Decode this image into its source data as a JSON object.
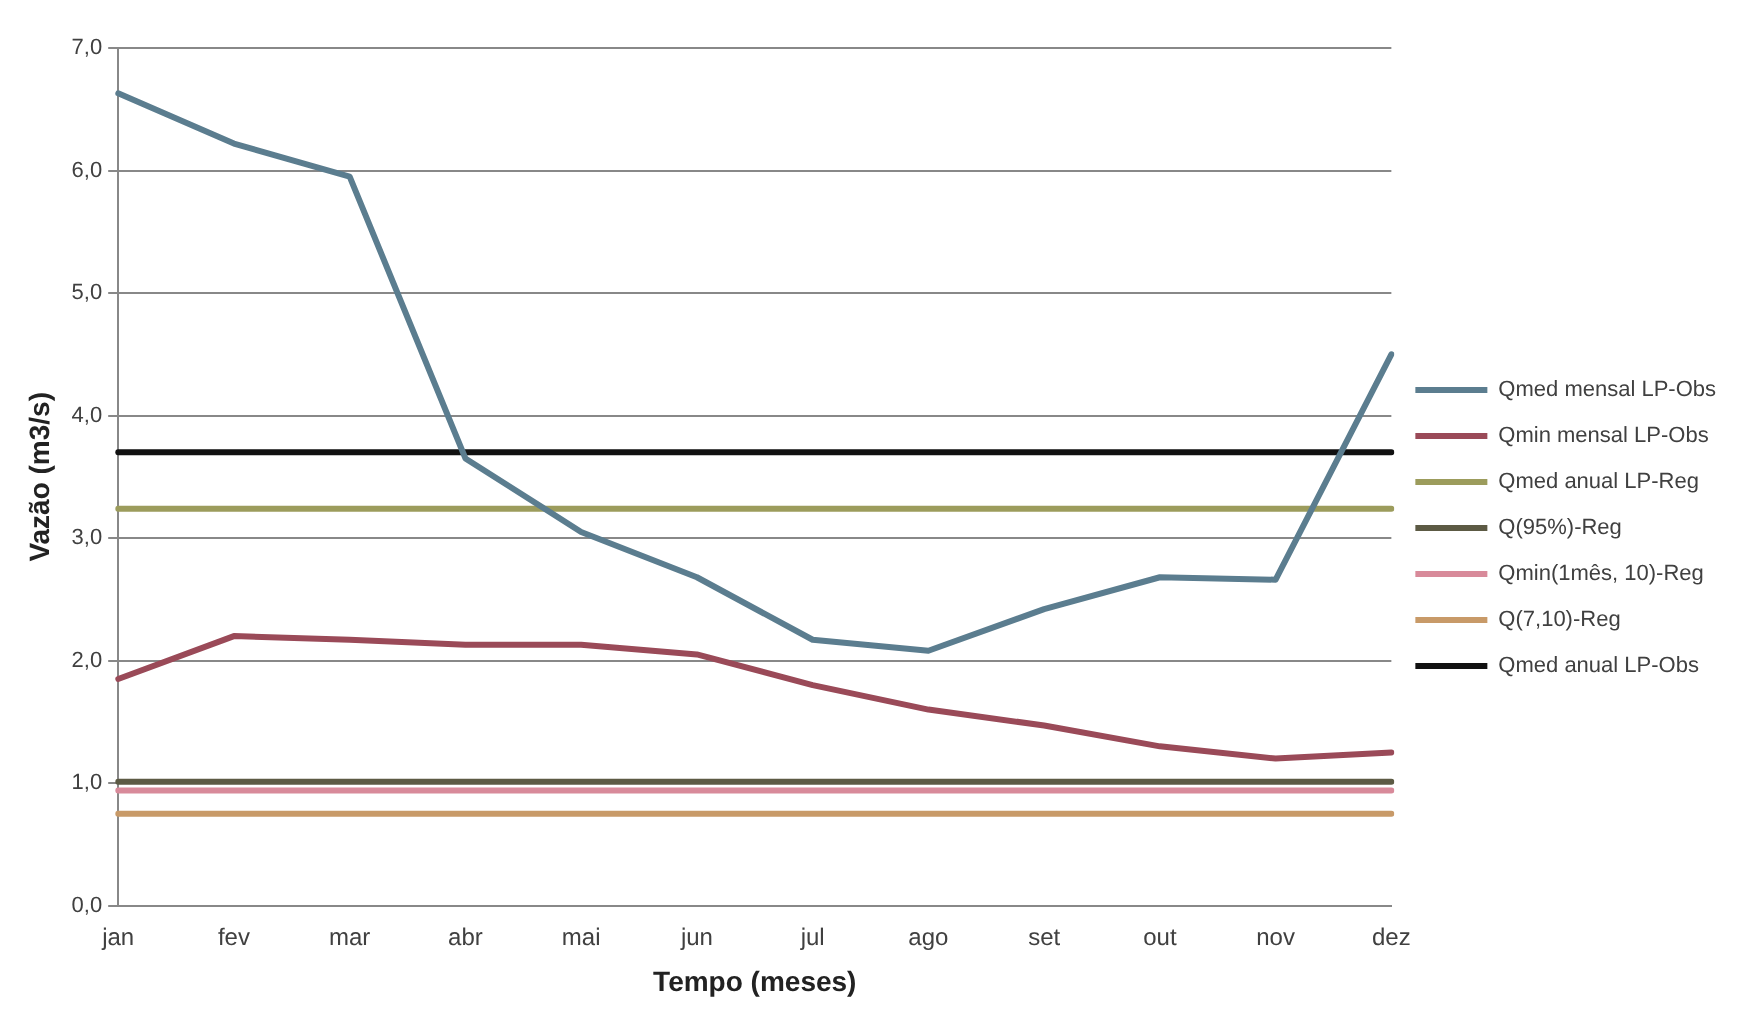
{
  "chart_data": {
    "type": "line",
    "xlabel": "Tempo (meses)",
    "ylabel": "Vazão (m3/s)",
    "categories": [
      "jan",
      "fev",
      "mar",
      "abr",
      "mai",
      "jun",
      "jul",
      "ago",
      "set",
      "out",
      "nov",
      "dez"
    ],
    "series": [
      {
        "name": "Qmed mensal LP-Obs",
        "color": "#5b7d8f",
        "values": [
          6.63,
          6.22,
          5.95,
          3.65,
          3.05,
          2.68,
          2.17,
          2.08,
          2.42,
          2.68,
          2.66,
          4.5
        ]
      },
      {
        "name": "Qmin mensal LP-Obs",
        "color": "#9a4a58",
        "values": [
          1.85,
          2.2,
          2.17,
          2.13,
          2.13,
          2.05,
          1.8,
          1.6,
          1.47,
          1.3,
          1.2,
          1.25
        ]
      },
      {
        "name": "Qmed anual LP-Reg",
        "color": "#9c9c5c",
        "values": [
          3.24,
          3.24,
          3.24,
          3.24,
          3.24,
          3.24,
          3.24,
          3.24,
          3.24,
          3.24,
          3.24,
          3.24
        ]
      },
      {
        "name": "Q(95%)-Reg",
        "color": "#5c5a44",
        "values": [
          1.01,
          1.01,
          1.01,
          1.01,
          1.01,
          1.01,
          1.01,
          1.01,
          1.01,
          1.01,
          1.01,
          1.01
        ]
      },
      {
        "name": "Qmin(1mês, 10)-Reg",
        "color": "#d88a9a",
        "values": [
          0.94,
          0.94,
          0.94,
          0.94,
          0.94,
          0.94,
          0.94,
          0.94,
          0.94,
          0.94,
          0.94,
          0.94
        ]
      },
      {
        "name": "Q(7,10)-Reg",
        "color": "#c89a68",
        "values": [
          0.75,
          0.75,
          0.75,
          0.75,
          0.75,
          0.75,
          0.75,
          0.75,
          0.75,
          0.75,
          0.75,
          0.75
        ]
      },
      {
        "name": "Qmed anual LP-Obs",
        "color": "#111111",
        "values": [
          3.7,
          3.7,
          3.7,
          3.7,
          3.7,
          3.7,
          3.7,
          3.7,
          3.7,
          3.7,
          3.7,
          3.7
        ]
      }
    ],
    "ylim": [
      0,
      7
    ],
    "yticks": [
      {
        "value": 0,
        "label": "0,0"
      },
      {
        "value": 1,
        "label": "1,0"
      },
      {
        "value": 2,
        "label": "2,0"
      },
      {
        "value": 3,
        "label": "3,0"
      },
      {
        "value": 4,
        "label": "4,0"
      },
      {
        "value": 5,
        "label": "5,0"
      },
      {
        "value": 6,
        "label": "6,0"
      },
      {
        "value": 7,
        "label": "7,0"
      }
    ],
    "grid": "y",
    "legend": "right",
    "marker": "none",
    "line_style": "solid"
  }
}
